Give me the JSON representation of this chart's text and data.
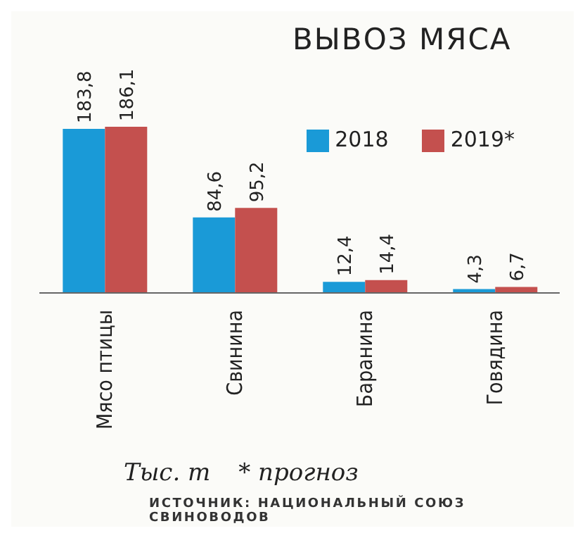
{
  "chart_data": {
    "type": "bar",
    "title": "ВЫВОЗ МЯСА",
    "categories": [
      "Мясо птицы",
      "Свинина",
      "Баранина",
      "Говядина"
    ],
    "series": [
      {
        "name": "2018",
        "color": "#1a9ad7",
        "values": [
          183.8,
          84.6,
          12.4,
          4.3
        ],
        "value_labels": [
          "183,8",
          "84,6",
          "12,4",
          "4,3"
        ]
      },
      {
        "name": "2019*",
        "color": "#c4504e",
        "values": [
          186.1,
          95.2,
          14.4,
          6.7
        ],
        "value_labels": [
          "186,1",
          "95,2",
          "14,4",
          "6,7"
        ]
      }
    ],
    "legend": "top right",
    "tick_labels": "x",
    "grid": false,
    "annotations": [
      "Тыс. т",
      "* прогноз",
      "ИСТОЧНИК: НАЦИОНАЛЬНЫЙ СОЮЗ СВИНОВОДОВ"
    ]
  }
}
